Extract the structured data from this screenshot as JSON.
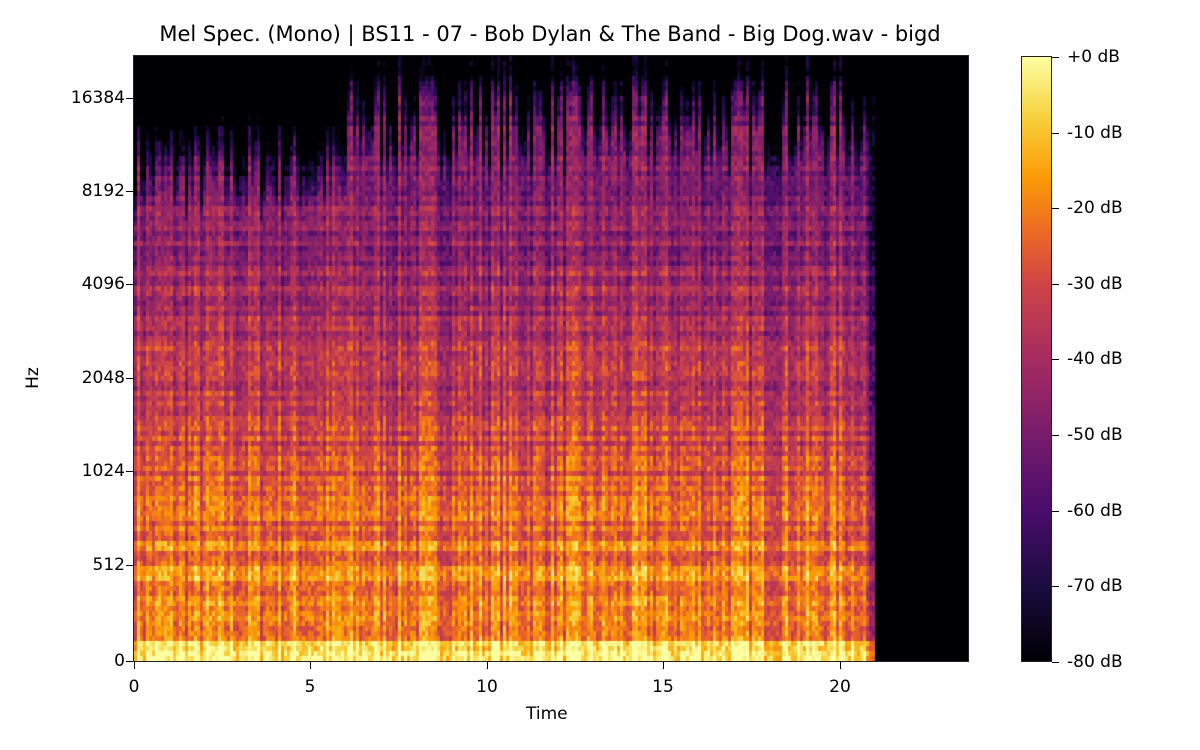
{
  "chart_data": {
    "type": "heatmap",
    "title": "Mel Spec. (Mono) | BS11 - 07 - Bob Dylan & The Band - Big Dog.wav - bigd",
    "xlabel": "Time",
    "ylabel": "Hz",
    "xlim": [
      0,
      23.7
    ],
    "x_ticks": [
      "0",
      "5",
      "10",
      "15",
      "20"
    ],
    "y_scale": "mel",
    "y_ticks": [
      "0",
      "512",
      "1024",
      "2048",
      "4096",
      "8192",
      "16384"
    ],
    "colorbar": {
      "colormap": "inferno",
      "range": [
        -80,
        0
      ],
      "ticks": [
        "+0 dB",
        "-10 dB",
        "-20 dB",
        "-30 dB",
        "-40 dB",
        "-50 dB",
        "-60 dB",
        "-70 dB",
        "-80 dB"
      ]
    },
    "audio_end_seconds": 21.0,
    "notes": "Energy concentrated below ~1 kHz; high-frequency content up to ~16 kHz from ~6s onward; silence after ~21s"
  },
  "colors": {
    "background": "#ffffff",
    "silence": "#000004",
    "peak": "#fcffa4"
  }
}
